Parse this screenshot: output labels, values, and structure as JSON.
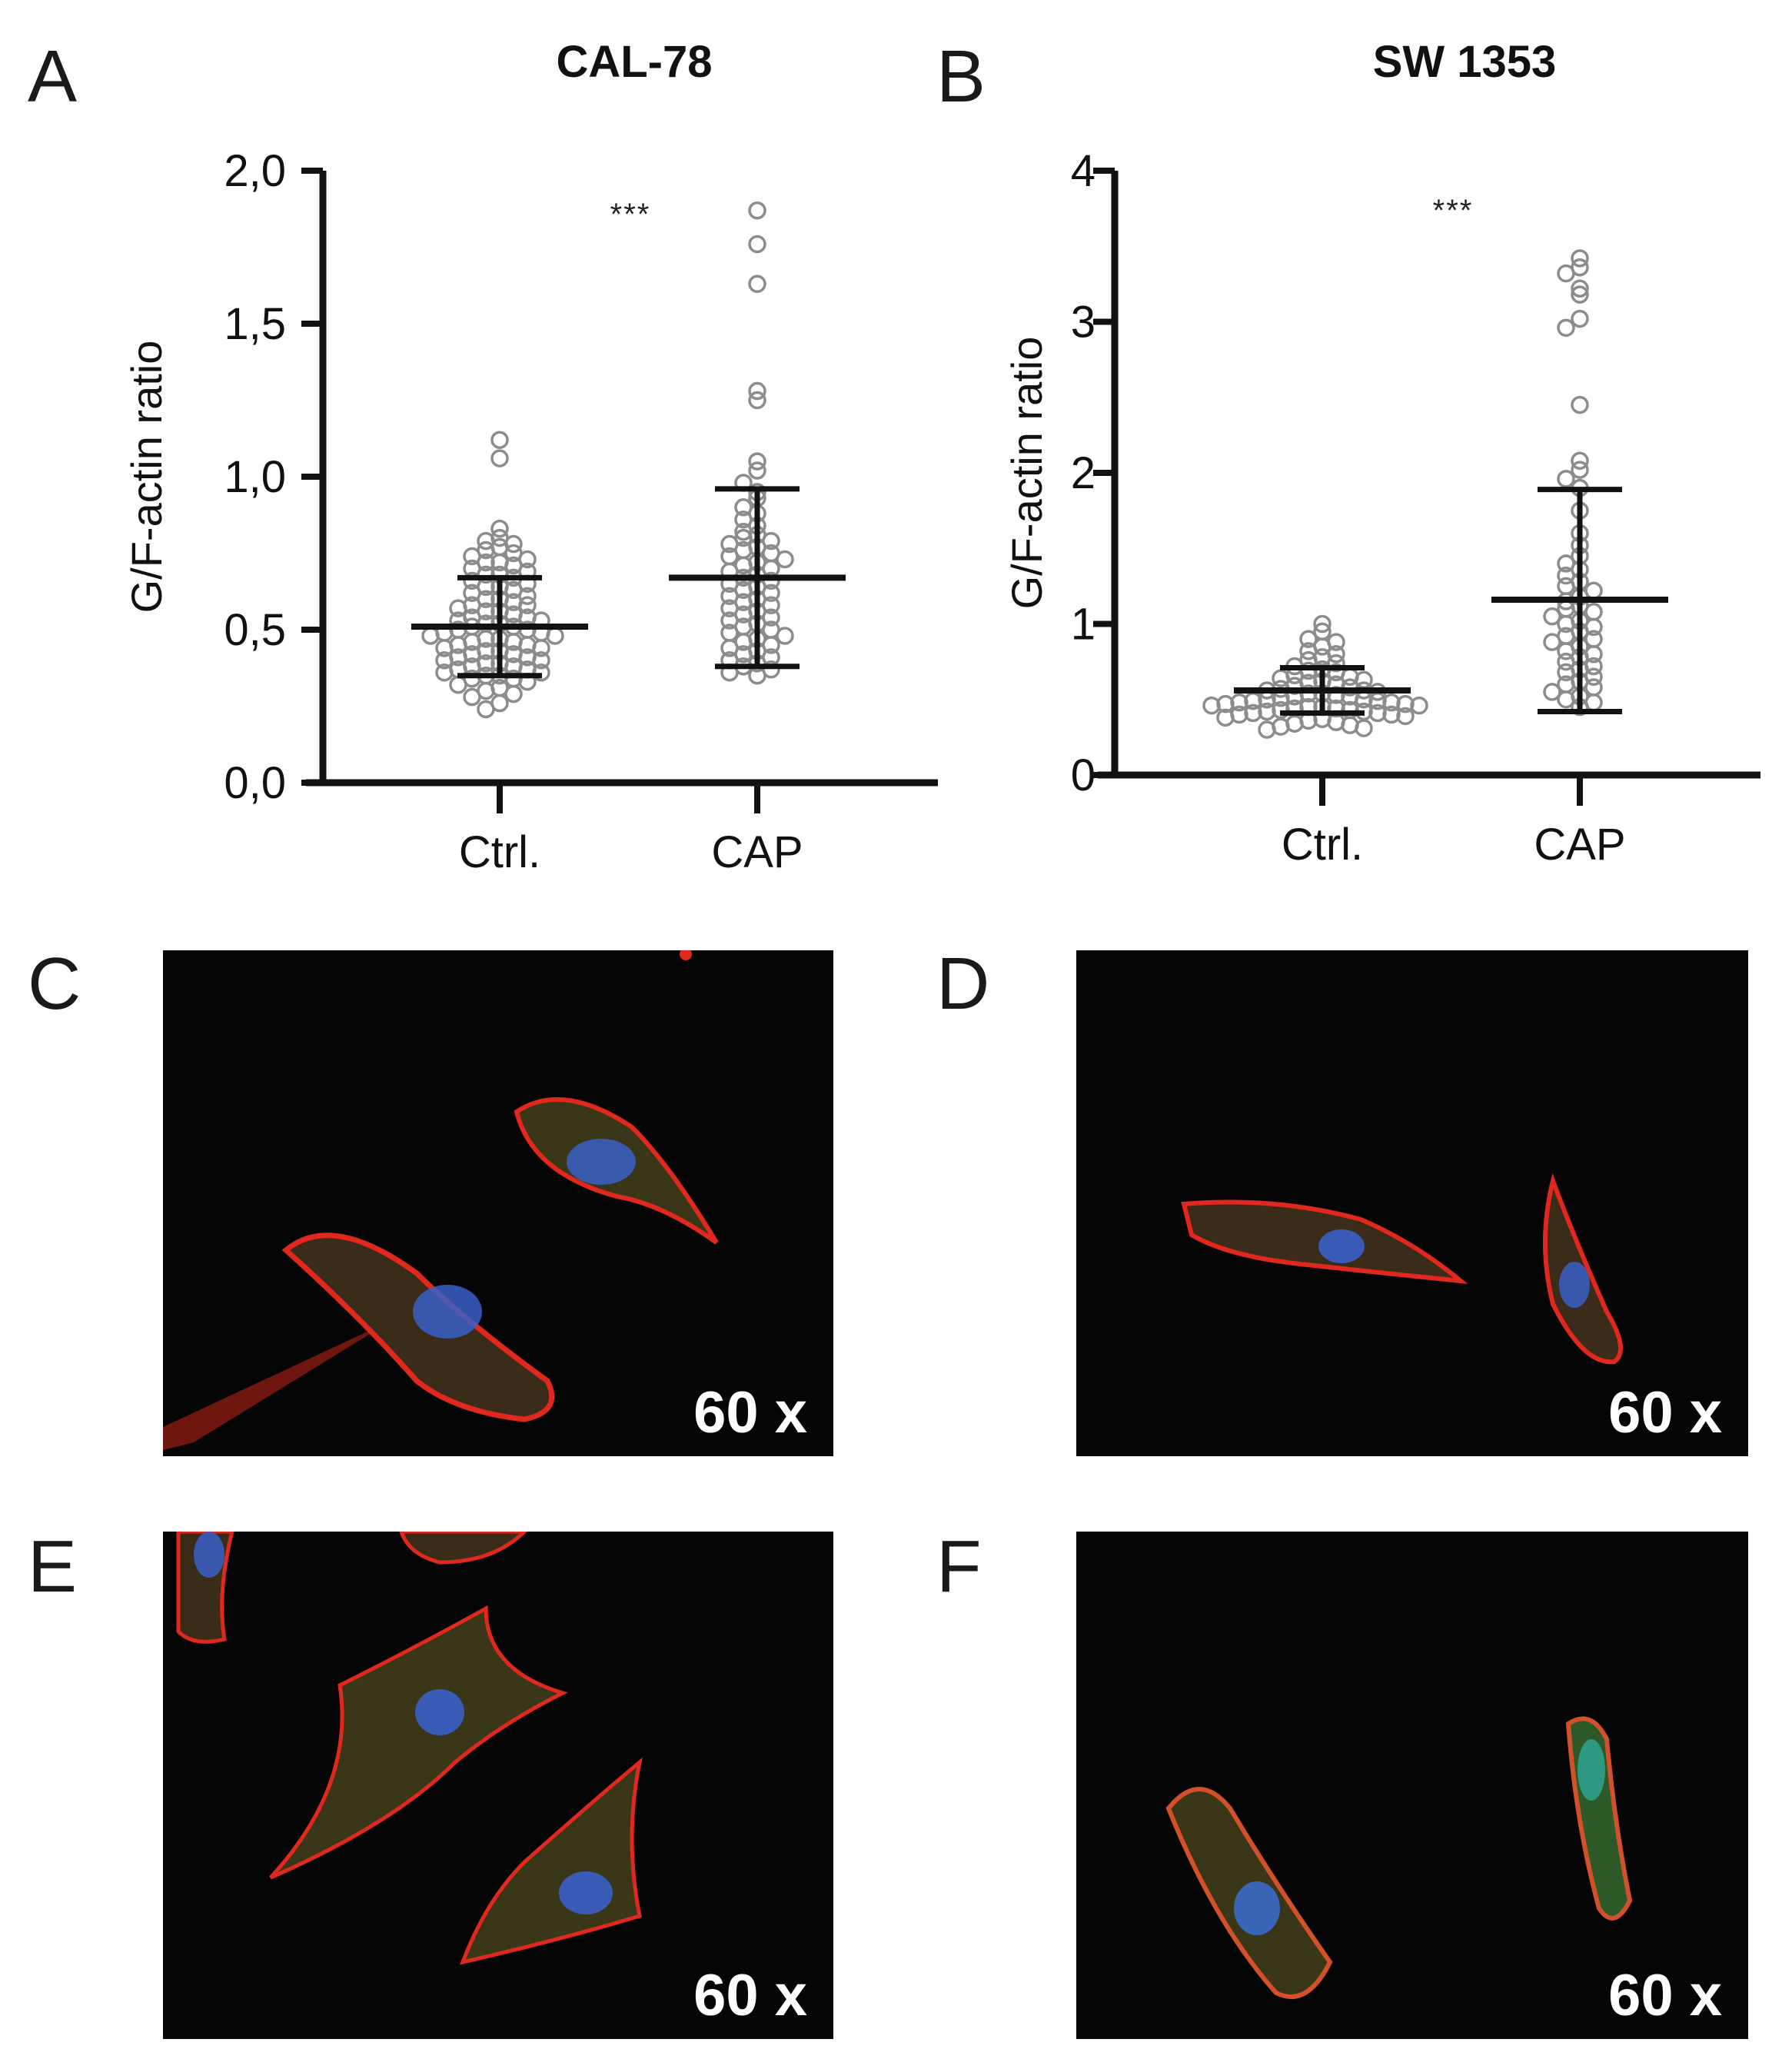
{
  "panels": {
    "A": "A",
    "B": "B",
    "C": "C",
    "D": "D",
    "E": "E",
    "F": "F"
  },
  "chart_data": [
    {
      "type": "scatter",
      "panel": "A",
      "title": "CAL-78",
      "ylabel": "G/F-actin ratio",
      "ylim": [
        0,
        2.0
      ],
      "yticks": [
        "0,0",
        "0,5",
        "1,0",
        "1,5",
        "2,0"
      ],
      "ytick_values": [
        0,
        0.5,
        1.0,
        1.5,
        2.0
      ],
      "categories": [
        "Ctrl.",
        "CAP"
      ],
      "significance": "***",
      "series": [
        {
          "category": "Ctrl.",
          "mean": 0.51,
          "sd_low": 0.35,
          "sd_high": 0.67,
          "values": [
            1.12,
            1.06,
            0.83,
            0.8,
            0.79,
            0.78,
            0.77,
            0.76,
            0.75,
            0.74,
            0.73,
            0.72,
            0.72,
            0.71,
            0.7,
            0.69,
            0.68,
            0.68,
            0.67,
            0.66,
            0.65,
            0.64,
            0.64,
            0.63,
            0.62,
            0.61,
            0.6,
            0.6,
            0.59,
            0.58,
            0.58,
            0.57,
            0.56,
            0.56,
            0.55,
            0.54,
            0.54,
            0.53,
            0.53,
            0.52,
            0.52,
            0.51,
            0.51,
            0.5,
            0.5,
            0.49,
            0.49,
            0.48,
            0.48,
            0.47,
            0.47,
            0.46,
            0.46,
            0.45,
            0.45,
            0.44,
            0.44,
            0.43,
            0.43,
            0.42,
            0.42,
            0.41,
            0.41,
            0.4,
            0.4,
            0.39,
            0.39,
            0.38,
            0.38,
            0.37,
            0.37,
            0.36,
            0.36,
            0.35,
            0.35,
            0.34,
            0.34,
            0.33,
            0.32,
            0.31,
            0.3,
            0.29,
            0.28,
            0.26,
            0.24
          ]
        },
        {
          "category": "CAP",
          "mean": 0.67,
          "sd_low": 0.38,
          "sd_high": 0.96,
          "values": [
            1.87,
            1.76,
            1.63,
            1.28,
            1.25,
            1.05,
            1.02,
            0.98,
            0.95,
            0.93,
            0.9,
            0.88,
            0.86,
            0.84,
            0.82,
            0.81,
            0.8,
            0.79,
            0.78,
            0.77,
            0.76,
            0.75,
            0.74,
            0.73,
            0.72,
            0.71,
            0.7,
            0.69,
            0.68,
            0.67,
            0.66,
            0.65,
            0.64,
            0.63,
            0.62,
            0.61,
            0.6,
            0.59,
            0.58,
            0.57,
            0.56,
            0.55,
            0.54,
            0.53,
            0.52,
            0.51,
            0.5,
            0.49,
            0.48,
            0.47,
            0.46,
            0.45,
            0.44,
            0.43,
            0.42,
            0.41,
            0.4,
            0.39,
            0.38,
            0.37,
            0.36,
            0.35
          ]
        }
      ]
    },
    {
      "type": "scatter",
      "panel": "B",
      "title": "SW 1353",
      "ylabel": "G/F-actin ratio",
      "ylim": [
        0,
        4
      ],
      "yticks": [
        "0",
        "1",
        "2",
        "3",
        "4"
      ],
      "ytick_values": [
        0,
        1,
        2,
        3,
        4
      ],
      "categories": [
        "Ctrl.",
        "CAP"
      ],
      "significance": "***",
      "series": [
        {
          "category": "Ctrl.",
          "mean": 0.56,
          "sd_low": 0.41,
          "sd_high": 0.71,
          "values": [
            1.0,
            0.95,
            0.9,
            0.88,
            0.85,
            0.82,
            0.8,
            0.78,
            0.76,
            0.74,
            0.72,
            0.7,
            0.69,
            0.68,
            0.66,
            0.65,
            0.64,
            0.63,
            0.62,
            0.61,
            0.6,
            0.59,
            0.58,
            0.57,
            0.56,
            0.56,
            0.55,
            0.54,
            0.54,
            0.53,
            0.52,
            0.52,
            0.51,
            0.5,
            0.5,
            0.49,
            0.49,
            0.48,
            0.48,
            0.47,
            0.47,
            0.46,
            0.46,
            0.45,
            0.45,
            0.44,
            0.44,
            0.43,
            0.43,
            0.42,
            0.42,
            0.41,
            0.41,
            0.4,
            0.4,
            0.39,
            0.38,
            0.37,
            0.36,
            0.35,
            0.34,
            0.33,
            0.32,
            0.31,
            0.3
          ]
        },
        {
          "category": "CAP",
          "mean": 1.16,
          "sd_low": 0.42,
          "sd_high": 1.89,
          "values": [
            3.42,
            3.36,
            3.32,
            3.22,
            3.18,
            3.02,
            2.96,
            2.45,
            2.08,
            2.02,
            1.96,
            1.9,
            1.75,
            1.6,
            1.52,
            1.45,
            1.4,
            1.36,
            1.32,
            1.28,
            1.25,
            1.22,
            1.18,
            1.15,
            1.12,
            1.1,
            1.08,
            1.05,
            1.02,
            1.0,
            0.98,
            0.95,
            0.92,
            0.9,
            0.88,
            0.85,
            0.82,
            0.8,
            0.78,
            0.75,
            0.72,
            0.7,
            0.68,
            0.65,
            0.62,
            0.6,
            0.58,
            0.55,
            0.52,
            0.5,
            0.48,
            0.45
          ]
        }
      ]
    }
  ],
  "micrographs": [
    {
      "panel": "C",
      "magnification": "60 x"
    },
    {
      "panel": "D",
      "magnification": "60 x"
    },
    {
      "panel": "E",
      "magnification": "60 x"
    },
    {
      "panel": "F",
      "magnification": "60 x"
    }
  ],
  "colors": {
    "axis": "#111111",
    "dot": "#8c8c8c",
    "bar": "#111111",
    "membrane": "#e0281e",
    "nucleus": "#3a5fc8",
    "cytoplasm": "#5a8a3a"
  }
}
